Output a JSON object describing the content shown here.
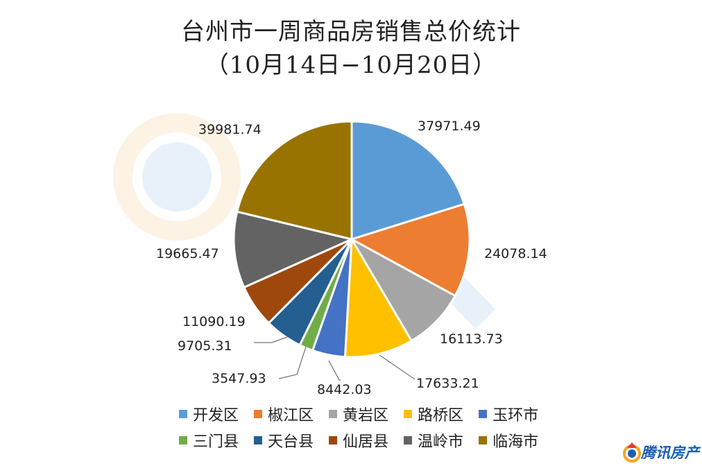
{
  "chart_data": {
    "type": "pie",
    "title": "台州市一周商品房销售总价统计",
    "subtitle": "（10月14日−10月20日）",
    "categories": [
      "开发区",
      "椒江区",
      "黄岩区",
      "路桥区",
      "玉环市",
      "三门县",
      "天台县",
      "仙居县",
      "温岭市",
      "临海市"
    ],
    "values": [
      37971.49,
      24078.14,
      16113.73,
      17633.21,
      8442.03,
      3547.93,
      9705.31,
      11090.19,
      19665.47,
      39981.74
    ],
    "value_labels": [
      "37971.49",
      "24078.14",
      "16113.73",
      "17633.21",
      "8442.03",
      "3547.93",
      "9705.31",
      "11090.19",
      "19665.47",
      "39981.74"
    ],
    "colors": [
      "#5b9bd5",
      "#ed7d31",
      "#a5a5a5",
      "#ffc000",
      "#4472c4",
      "#70ad47",
      "#255e91",
      "#9e480e",
      "#636363",
      "#997300"
    ],
    "legend_position": "bottom"
  },
  "brand": {
    "name": "腾讯房产",
    "logo_icon": "tencent-house-logo"
  },
  "watermark": {
    "icon": "tencent-news-watermark"
  }
}
